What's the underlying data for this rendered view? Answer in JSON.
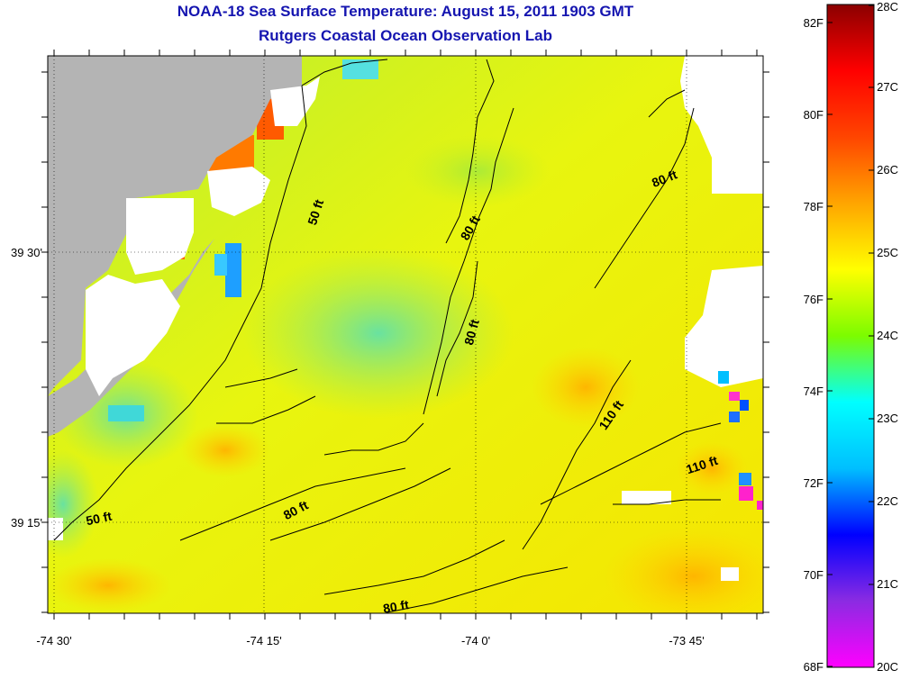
{
  "title": "NOAA-18 Sea Surface Temperature:  August 15, 2011 1903 GMT",
  "subtitle": "Rutgers Coastal Ocean Observation Lab",
  "colors": {
    "title": "#1515b0",
    "land": "#b4b4b4",
    "cloud": "#ffffff",
    "contour": "#000000"
  },
  "map": {
    "longitude_ticks": [
      "-74 30'",
      "-74 15'",
      "-74 0'",
      "-73 45'"
    ],
    "latitude_ticks": [
      "39 30'",
      "39 15'"
    ],
    "bathymetry_labels": [
      "50 ft",
      "50 ft",
      "80 ft",
      "80 ft",
      "80 ft",
      "80 ft",
      "80 ft",
      "110 ft",
      "110 ft"
    ]
  },
  "colorbar": {
    "fahrenheit_labels": [
      "82F",
      "80F",
      "78F",
      "76F",
      "74F",
      "72F",
      "70F",
      "68F"
    ],
    "celsius_labels": [
      "28C",
      "27C",
      "26C",
      "25C",
      "24C",
      "23C",
      "22C",
      "21C",
      "20C"
    ],
    "gradient": [
      "#ff00ff",
      "#8b2be2",
      "#0000ff",
      "#00bfff",
      "#00ffff",
      "#7cfc00",
      "#ffff00",
      "#ffa500",
      "#ff4500",
      "#ff0000",
      "#8b0000"
    ]
  }
}
